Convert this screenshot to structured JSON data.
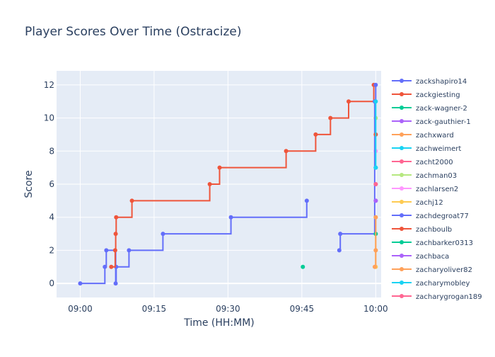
{
  "chart_data": {
    "type": "line",
    "title": "Player Scores Over Time (Ostracize)",
    "xlabel": "Time (HH:MM)",
    "ylabel": "Score",
    "x_ticks": [
      "09:00",
      "09:15",
      "09:30",
      "09:45",
      "10:00"
    ],
    "x_tick_minutes": [
      0,
      15,
      30,
      45,
      60
    ],
    "xlim_minutes": [
      -4.8,
      61.1
    ],
    "ylim": [
      -0.85,
      12.85
    ],
    "y_ticks": [
      0,
      2,
      4,
      6,
      8,
      10,
      12
    ],
    "grid": true,
    "line_shape": "step",
    "legend_position": "right",
    "series": [
      {
        "name": "zackshapiro14",
        "color": "#636efa",
        "points": [
          [
            0,
            0
          ],
          [
            5.0,
            1
          ],
          [
            5.3,
            2
          ],
          [
            7.2,
            0
          ],
          [
            7.3,
            1
          ],
          [
            9.9,
            2
          ],
          [
            16.8,
            3
          ],
          [
            30.6,
            4
          ],
          [
            46.0,
            5
          ]
        ]
      },
      {
        "name": "zackgiesting",
        "color": "#ef553b",
        "points": [
          [
            6.3,
            1
          ],
          [
            7.1,
            2
          ],
          [
            7.2,
            3
          ],
          [
            7.3,
            4
          ],
          [
            10.5,
            5
          ],
          [
            26.3,
            6
          ],
          [
            28.3,
            7
          ],
          [
            41.8,
            8
          ],
          [
            47.8,
            9
          ],
          [
            50.8,
            10
          ],
          [
            54.5,
            11
          ],
          [
            59.6,
            12
          ]
        ]
      },
      {
        "name": "zack-wagner-2",
        "color": "#00cc96",
        "points": [
          [
            45.2,
            1
          ]
        ]
      },
      {
        "name": "zack-gauthier-1",
        "color": "#ab63fa",
        "points": [
          [
            60,
            5
          ]
        ]
      },
      {
        "name": "zachxward",
        "color": "#ffa15a",
        "points": [
          [
            60,
            2
          ]
        ]
      },
      {
        "name": "zachweimert",
        "color": "#19d3f3",
        "points": [
          [
            60,
            7
          ]
        ]
      },
      {
        "name": "zacht2000",
        "color": "#ff6692",
        "points": [
          [
            60,
            6
          ]
        ]
      },
      {
        "name": "zachman03",
        "color": "#b6e880",
        "points": [
          [
            60,
            10
          ]
        ]
      },
      {
        "name": "zachlarsen2",
        "color": "#ff97ff",
        "points": [
          [
            60,
            8
          ]
        ]
      },
      {
        "name": "zachj12",
        "color": "#fecb52",
        "points": [
          [
            60,
            1
          ],
          [
            60,
            4
          ]
        ]
      },
      {
        "name": "zachdegroat77",
        "color": "#636efa",
        "points": [
          [
            52.6,
            2
          ],
          [
            52.8,
            3
          ],
          [
            59.8,
            11
          ],
          [
            60,
            12
          ]
        ]
      },
      {
        "name": "zachboulb",
        "color": "#ef553b",
        "points": [
          [
            60,
            9
          ]
        ]
      },
      {
        "name": "zachbarker0313",
        "color": "#00cc96",
        "points": [
          [
            60,
            3
          ]
        ]
      },
      {
        "name": "zachbaca",
        "color": "#ab63fa",
        "points": [
          [
            60,
            5
          ]
        ]
      },
      {
        "name": "zacharyoliver82",
        "color": "#ffa15a",
        "points": [
          [
            59.8,
            1
          ],
          [
            60,
            2
          ],
          [
            60,
            4
          ]
        ]
      },
      {
        "name": "zacharymobley",
        "color": "#19d3f3",
        "points": [
          [
            60,
            7
          ],
          [
            60,
            11
          ]
        ]
      },
      {
        "name": "zacharygrogan189",
        "color": "#ff6692",
        "points": [
          [
            60,
            6
          ]
        ]
      }
    ]
  }
}
